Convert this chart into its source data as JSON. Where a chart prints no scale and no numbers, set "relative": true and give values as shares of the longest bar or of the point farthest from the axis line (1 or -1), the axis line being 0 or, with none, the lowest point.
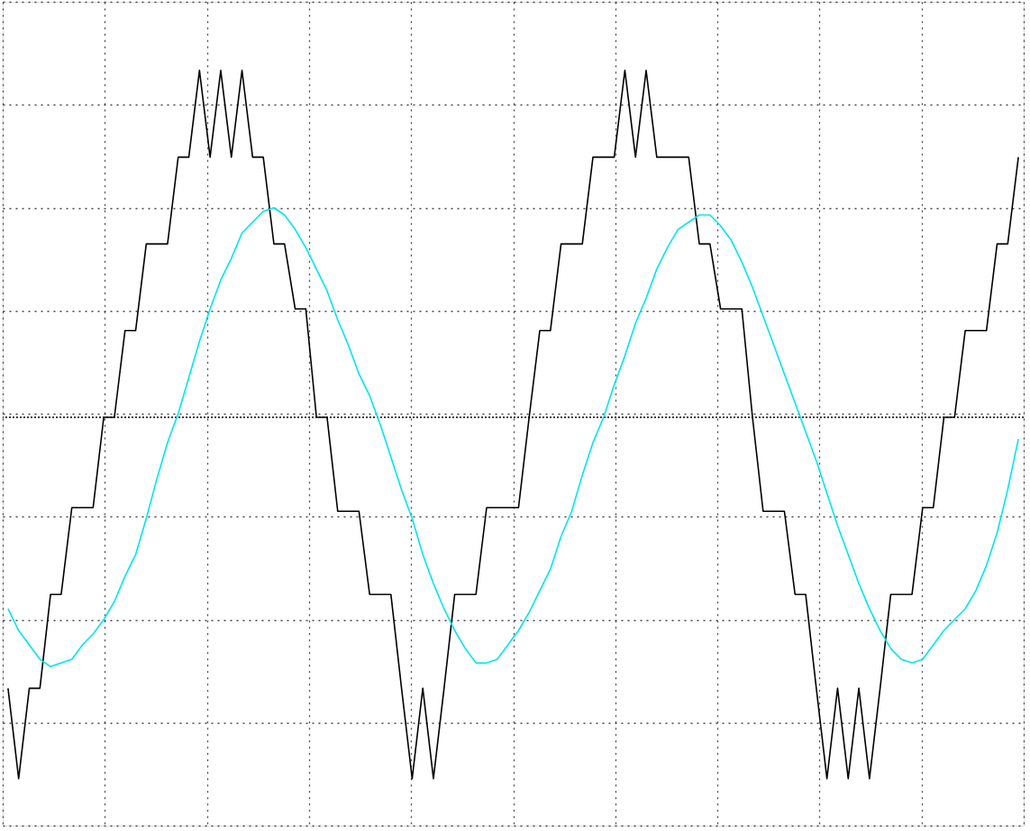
{
  "chart_data": {
    "type": "line",
    "relative": true,
    "grid": true,
    "legend": false,
    "marker": "none",
    "line_style": "solid",
    "ref_lines": [
      {
        "axis": "y",
        "value": 0,
        "color": "#000000",
        "line_style": "dotted"
      }
    ],
    "categories": [
      null,
      null,
      null,
      null,
      null,
      null,
      null,
      null,
      null,
      null,
      null,
      null,
      null,
      null,
      null,
      null,
      null,
      null,
      null,
      null,
      null,
      null,
      null,
      null,
      null,
      null,
      null,
      null,
      null,
      null,
      null,
      null,
      null,
      null,
      null,
      null,
      null,
      null,
      null,
      null,
      null,
      null,
      null,
      null,
      null,
      null,
      null,
      null,
      null,
      null,
      null,
      null,
      null,
      null,
      null,
      null,
      null,
      null,
      null,
      null,
      null,
      null,
      null,
      null,
      null,
      null,
      null,
      null,
      null,
      null,
      null,
      null,
      null,
      null,
      null,
      null,
      null,
      null,
      null,
      null,
      null,
      null,
      null,
      null,
      null,
      null,
      null,
      null,
      null,
      null,
      null,
      null,
      null,
      null,
      null,
      null
    ],
    "series": [
      {
        "color": "#000000",
        "values": [
          -0.75,
          -1.0,
          -0.75,
          -0.75,
          -0.49,
          -0.49,
          -0.25,
          -0.25,
          -0.25,
          0,
          0,
          0.24,
          0.24,
          0.48,
          0.48,
          0.48,
          0.72,
          0.72,
          0.96,
          0.72,
          0.96,
          0.72,
          0.96,
          0.72,
          0.72,
          0.48,
          0.48,
          0.3,
          0.3,
          0,
          0,
          -0.26,
          -0.26,
          -0.26,
          -0.49,
          -0.49,
          -0.49,
          -0.75,
          -1.0,
          -0.75,
          -1.0,
          -0.75,
          -0.49,
          -0.49,
          -0.49,
          -0.25,
          -0.25,
          -0.25,
          -0.25,
          0,
          0.24,
          0.24,
          0.48,
          0.48,
          0.48,
          0.72,
          0.72,
          0.72,
          0.96,
          0.72,
          0.96,
          0.72,
          0.72,
          0.72,
          0.72,
          0.48,
          0.48,
          0.3,
          0.3,
          0.3,
          0,
          -0.26,
          -0.26,
          -0.26,
          -0.49,
          -0.49,
          -0.75,
          -1.0,
          -0.75,
          -1.0,
          -0.75,
          -1.0,
          -0.75,
          -0.49,
          -0.49,
          -0.49,
          -0.25,
          -0.25,
          0,
          0,
          0.24,
          0.24,
          0.24,
          0.48,
          0.48,
          0.72
        ]
      },
      {
        "color": "#00e5ee",
        "values": [
          -0.53,
          -0.59,
          -0.63,
          -0.67,
          -0.69,
          -0.68,
          -0.67,
          -0.63,
          -0.6,
          -0.56,
          -0.51,
          -0.44,
          -0.38,
          -0.28,
          -0.17,
          -0.07,
          0.01,
          0.11,
          0.21,
          0.3,
          0.38,
          0.44,
          0.51,
          0.54,
          0.57,
          0.58,
          0.56,
          0.52,
          0.47,
          0.41,
          0.35,
          0.27,
          0.2,
          0.12,
          0.06,
          -0.02,
          -0.11,
          -0.2,
          -0.28,
          -0.38,
          -0.46,
          -0.53,
          -0.59,
          -0.64,
          -0.68,
          -0.68,
          -0.67,
          -0.63,
          -0.59,
          -0.54,
          -0.48,
          -0.42,
          -0.33,
          -0.26,
          -0.16,
          -0.07,
          0,
          0.09,
          0.17,
          0.26,
          0.33,
          0.41,
          0.47,
          0.52,
          0.54,
          0.56,
          0.56,
          0.53,
          0.49,
          0.43,
          0.36,
          0.28,
          0.2,
          0.12,
          0.04,
          -0.04,
          -0.12,
          -0.21,
          -0.3,
          -0.38,
          -0.46,
          -0.53,
          -0.59,
          -0.64,
          -0.67,
          -0.68,
          -0.67,
          -0.63,
          -0.59,
          -0.56,
          -0.53,
          -0.48,
          -0.41,
          -0.32,
          -0.2,
          -0.06
        ]
      }
    ]
  }
}
